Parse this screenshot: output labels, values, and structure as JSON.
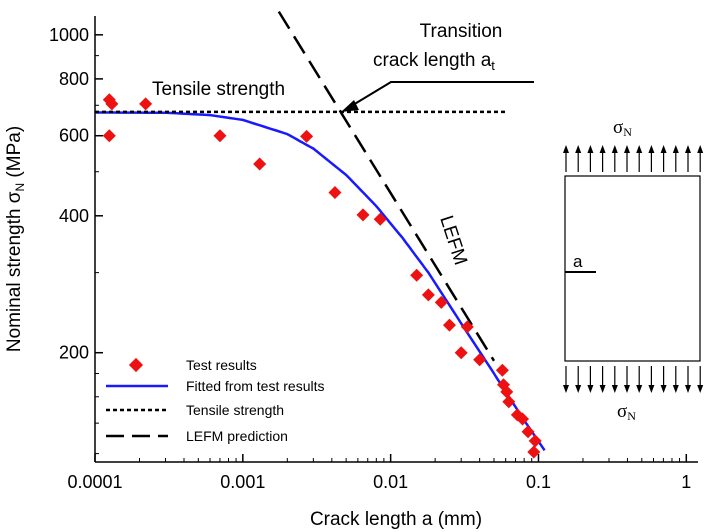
{
  "chart_data": {
    "type": "scatter",
    "xlabel": "Crack length a (mm)",
    "ylabel_main": "Nominal strength σ",
    "ylabel_sub": "N",
    "ylabel_unit": " (MPa)",
    "x_scale": "log",
    "y_scale": "log",
    "xlim": [
      0.0001,
      1.2
    ],
    "ylim": [
      115,
      1100
    ],
    "x_ticks": [
      {
        "value": 0.0001,
        "label": "0.0001"
      },
      {
        "value": 0.001,
        "label": "0.001"
      },
      {
        "value": 0.01,
        "label": "0.01"
      },
      {
        "value": 0.1,
        "label": "0.1"
      },
      {
        "value": 1,
        "label": "1"
      }
    ],
    "y_ticks": [
      {
        "value": 200,
        "label": "200"
      },
      {
        "value": 400,
        "label": "400"
      },
      {
        "value": 600,
        "label": "600"
      },
      {
        "value": 800,
        "label": "800"
      },
      {
        "value": 1000,
        "label": "1000"
      }
    ],
    "grid": false,
    "legend_position": "bottom-left",
    "series": [
      {
        "name": "Test results",
        "kind": "scatter",
        "color": "#ee1111",
        "marker": "diamond",
        "points": [
          [
            0.000125,
            720
          ],
          [
            0.00013,
            705
          ],
          [
            0.000125,
            600
          ],
          [
            0.00022,
            705
          ],
          [
            0.0007,
            600
          ],
          [
            0.0013,
            520
          ],
          [
            0.0027,
            598
          ],
          [
            0.0042,
            450
          ],
          [
            0.0065,
            402
          ],
          [
            0.0085,
            393
          ],
          [
            0.015,
            296
          ],
          [
            0.018,
            268
          ],
          [
            0.022,
            258
          ],
          [
            0.025,
            230
          ],
          [
            0.03,
            200
          ],
          [
            0.033,
            228
          ],
          [
            0.04,
            193
          ],
          [
            0.057,
            183
          ],
          [
            0.058,
            170
          ],
          [
            0.061,
            164
          ],
          [
            0.063,
            156
          ],
          [
            0.072,
            146
          ],
          [
            0.078,
            143
          ],
          [
            0.085,
            134
          ],
          [
            0.093,
            121
          ],
          [
            0.095,
            128
          ]
        ]
      },
      {
        "name": "Fitted from test results",
        "kind": "line",
        "color": "#1a1aff",
        "style": "solid",
        "points": [
          [
            0.0001,
            675
          ],
          [
            0.0003,
            674
          ],
          [
            0.0006,
            666
          ],
          [
            0.001,
            650
          ],
          [
            0.002,
            605
          ],
          [
            0.003,
            562
          ],
          [
            0.005,
            492
          ],
          [
            0.008,
            420
          ],
          [
            0.012,
            358
          ],
          [
            0.018,
            300
          ],
          [
            0.03,
            232
          ],
          [
            0.05,
            180
          ],
          [
            0.08,
            142
          ],
          [
            0.11,
            122
          ]
        ]
      },
      {
        "name": "Tensile strength",
        "kind": "line",
        "color": "#000000",
        "style": "dotted",
        "points": [
          [
            0.0001,
            677
          ],
          [
            0.06,
            677
          ]
        ]
      },
      {
        "name": "LEFM prediction",
        "kind": "line",
        "color": "#000000",
        "style": "dashed",
        "points": [
          [
            0.00175,
            1125
          ],
          [
            0.05,
            192
          ]
        ]
      }
    ],
    "annotations": {
      "tensile": "Tensile strength",
      "transition_line1": "Transition",
      "transition_line2": "crack length a",
      "transition_sub": "t",
      "lefm": "LEFM",
      "specimen_crack": "a",
      "sigma": "σ",
      "sigma_sub": "N"
    }
  }
}
